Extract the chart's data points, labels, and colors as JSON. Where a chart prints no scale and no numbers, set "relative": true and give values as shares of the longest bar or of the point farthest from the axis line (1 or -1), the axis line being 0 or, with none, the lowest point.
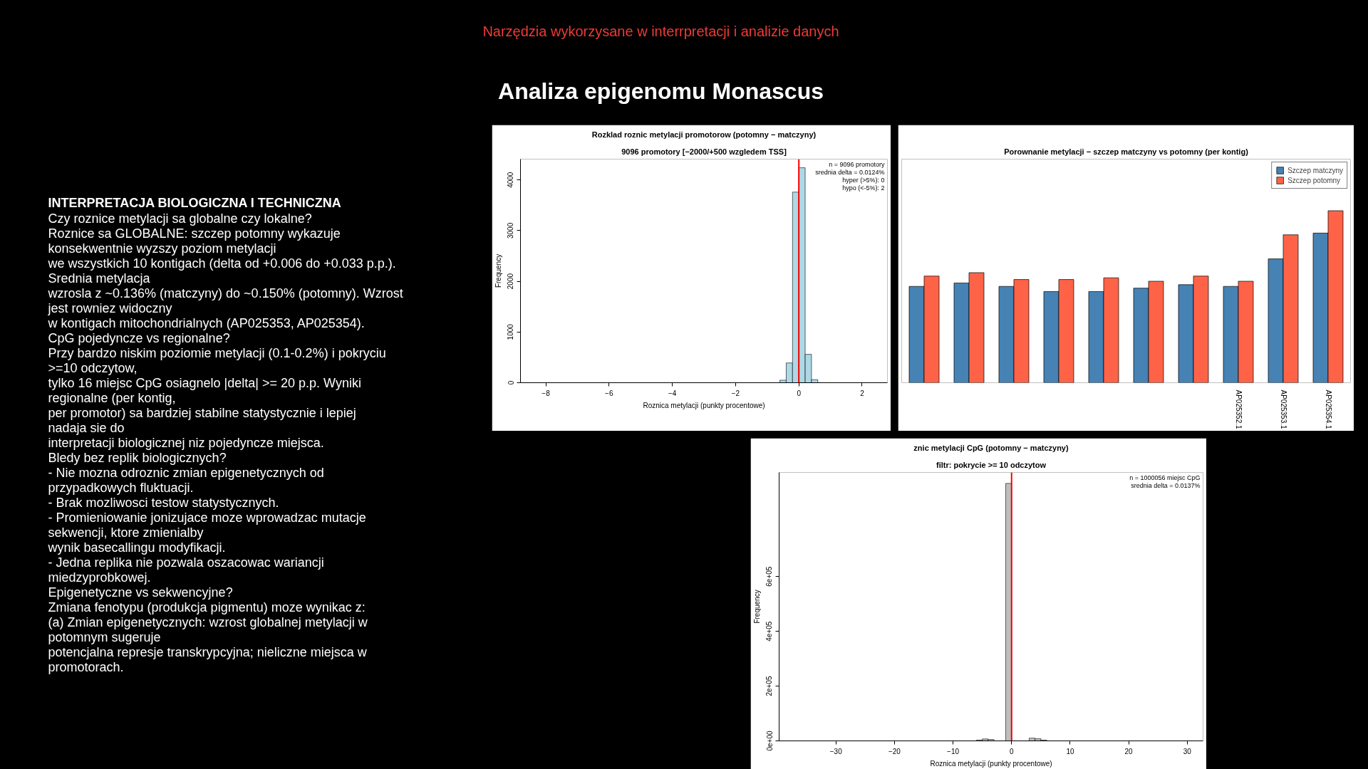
{
  "chart_data": [
    {
      "type": "other",
      "title": "Analiza epigenomu Monascus",
      "subtitle": "Narzędzia wykorzysane w interrpretacji i analizie danych"
    },
    {
      "type": "other",
      "title": "INTERPRETACJA BIOLOGICZNA I TECHNICZNA",
      "annotations": [
        "Czy roznice metylacji sa globalne czy lokalne?",
        "Roznice sa GLOBALNE: szczep potomny wykazuje",
        "konsekwentnie wyzszy poziom metylacji",
        "we wszystkich 10 kontigach (delta od +0.006 do +0.033 p.p.).",
        "Srednia metylacja",
        "wzrosla z ~0.136% (matczyny) do ~0.150% (potomny). Wzrost",
        "jest rowniez widoczny",
        "w kontigach mitochondrialnych (AP025353, AP025354).",
        "CpG pojedyncze vs regionalne?",
        "Przy bardzo niskim poziomie metylacji (0.1-0.2%) i pokryciu",
        ">=10 odczytow,",
        "tylko 16 miejsc CpG osiagnelo |delta| >= 20 p.p. Wyniki",
        "regionalne (per kontig,",
        "per promotor) sa bardziej stabilne statystycznie i lepiej",
        "nadaja sie do",
        "interpretacji biologicznej niz pojedyncze miejsca.",
        "Bledy bez replik biologicznych?",
        "- Nie mozna odroznic zmian epigenetycznych od",
        "przypadkowych fluktuacji.",
        "- Brak mozliwosci testow statystycznych.",
        "- Promieniowanie jonizujace moze wprowadzac mutacje",
        "sekwencji, ktore zmienialby",
        "wynik basecallingu modyfikacji.",
        "- Jedna replika nie pozwala oszacowac wariancji",
        "miedzyprobkowej.",
        "Epigenetyczne vs sekwencyjne?",
        "Zmiana fenotypu (produkcja pigmentu) moze wynikac z:",
        "(a) Zmian epigenetycznych: wzrost globalnej metylacji w",
        "potomnym sugeruje",
        "potencjalna represje transkrypcyjna; nieliczne miejsca w",
        "promotorach."
      ]
    },
    {
      "type": "histogram",
      "title": "Rozklad roznic metylacji promotorow (potomny − matczyny)",
      "subtitle": "9096 promotory [−2000/+500 wzgledem TSS]",
      "xlabel": "Roznica metylacji (punkty procentowe)",
      "ylabel": "Frequency",
      "color": "#add8e6",
      "bins": [
        -0.6,
        -0.4,
        -0.2,
        0,
        0.2,
        0.4,
        0.6
      ],
      "values": [
        50,
        390,
        3760,
        4240,
        560,
        60
      ],
      "xlim": [
        -8.8,
        2.8
      ],
      "ylim": [
        0,
        4410
      ],
      "xticks": [
        -8,
        -6,
        -4,
        -2,
        0,
        2
      ],
      "yticks": [
        0,
        1000,
        2000,
        3000,
        4000
      ],
      "ref_lines": [
        {
          "axis": "x",
          "value": 0,
          "color": "#ff0000"
        }
      ],
      "annotations": [
        "n = 9096 promotory",
        "srednia delta = 0.0124%",
        "hyper (>5%): 0",
        "hypo (<-5%): 2"
      ]
    },
    {
      "type": "bar",
      "title": "Porownanie metylacji − szczep matczyny vs potomny (per kontig)",
      "relative": true,
      "legend": "top right",
      "categories": [
        null,
        null,
        null,
        null,
        null,
        null,
        null,
        "AP025352.1",
        "AP025353.1",
        "AP025354.1"
      ],
      "series": [
        {
          "name": "Szczep matczyny",
          "color": "#4682b4",
          "values": [
            0.56,
            0.58,
            0.56,
            0.53,
            0.53,
            0.55,
            0.57,
            0.56,
            0.72,
            0.87
          ]
        },
        {
          "name": "Szczep potomny",
          "color": "#ff6347",
          "values": [
            0.62,
            0.64,
            0.6,
            0.6,
            0.61,
            0.59,
            0.62,
            0.59,
            0.86,
            1
          ]
        }
      ]
    },
    {
      "type": "histogram",
      "title": "znic metylacji CpG (potomny − matczyny)",
      "subtitle": "filtr: pokrycie >= 10 odczytow",
      "xlabel": "Roznica metylacji (punkty procentowe)",
      "ylabel": "Frequency",
      "color": "#bebebe",
      "bins": [
        -6,
        -5,
        -4,
        -3,
        -2,
        -1,
        0,
        1,
        2,
        3,
        4,
        5,
        6
      ],
      "values": [
        3000,
        7000,
        5000,
        null,
        null,
        940000,
        null,
        null,
        null,
        10000,
        8000,
        3000
      ],
      "xlim": [
        -39.7,
        32.7
      ],
      "ylim": [
        0,
        980000
      ],
      "xticks": [
        -30,
        -20,
        -10,
        0,
        10,
        20,
        30
      ],
      "yticks": [
        {
          "value": 0,
          "label": "0e+00"
        },
        {
          "value": 200000,
          "label": "2e+05"
        },
        {
          "value": 400000,
          "label": "4e+05"
        },
        {
          "value": 600000,
          "label": "6e+05"
        }
      ],
      "ref_lines": [
        {
          "axis": "x",
          "value": 0,
          "color": "#ff0000"
        }
      ],
      "annotations": [
        "n = 1000056 miejsc CpG",
        "srednia delta = 0.0137%"
      ]
    }
  ]
}
